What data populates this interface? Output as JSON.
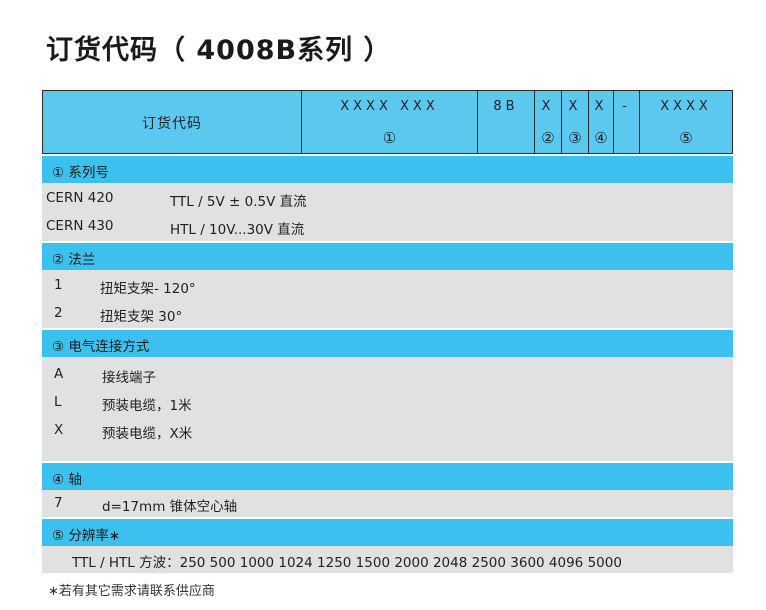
{
  "title": "订货代码（ 4008B系列 ）",
  "code_header": {
    "label": "订货代码",
    "fields": [
      {
        "top": "XXXX XXX",
        "bottom": "①"
      },
      {
        "top": "8B",
        "bottom": ""
      },
      {
        "top": "X",
        "bottom": "②"
      },
      {
        "top": "X",
        "bottom": "③"
      },
      {
        "top": "X",
        "bottom": "④"
      },
      {
        "top": "-",
        "bottom": ""
      },
      {
        "top": "XXXX",
        "bottom": "⑤"
      }
    ]
  },
  "sections": [
    {
      "heading": "①  系列号",
      "rows": [
        {
          "code": "CERN 420",
          "desc": "TTL / 5V ± 0.5V 直流"
        },
        {
          "code": "CERN 430",
          "desc": "HTL / 10V...30V 直流"
        }
      ]
    },
    {
      "heading": "②  法兰",
      "rows": [
        {
          "code": "1",
          "desc": "扭矩支架- 120°"
        },
        {
          "code": "2",
          "desc": "扭矩支架   30°"
        }
      ]
    },
    {
      "heading": "③  电气连接方式",
      "rows": [
        {
          "code": "A",
          "desc": "接线端子"
        },
        {
          "code": "L",
          "desc": "预装电缆，1米"
        },
        {
          "code": "X",
          "desc": "预装电缆，X米"
        }
      ]
    },
    {
      "heading": "④  轴",
      "rows": [
        {
          "code": "7",
          "desc": "d=17mm   锥体空心轴"
        }
      ]
    },
    {
      "heading": "⑤  分辨率∗",
      "rows": [
        {
          "code": "",
          "desc": "TTL / HTL 方波：250 500 1000  1024  1250  1500  2000  2048  2500  3600 4096 5000"
        }
      ]
    }
  ],
  "footnote": "∗若有其它需求请联系供应商"
}
